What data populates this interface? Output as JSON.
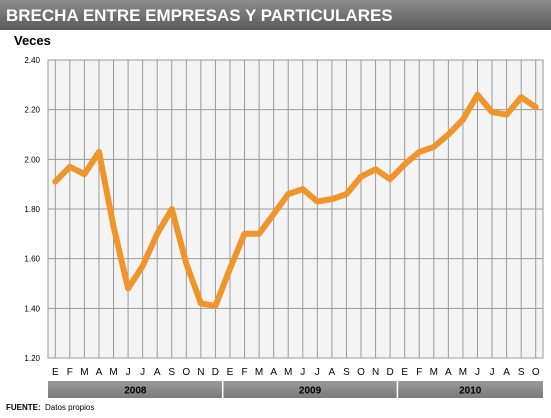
{
  "chart_data": {
    "type": "line",
    "title": "BRECHA ENTRE EMPRESAS Y PARTICULARES",
    "ylabel": "Veces",
    "source_label": "FUENTE:",
    "source_text": "Datos propios",
    "ylim": [
      1.2,
      2.4
    ],
    "yticks": [
      "1.20",
      "1.40",
      "1.60",
      "1.80",
      "2.00",
      "2.20",
      "2.40"
    ],
    "grid": true,
    "categories": [
      "E",
      "F",
      "M",
      "A",
      "M",
      "J",
      "J",
      "A",
      "S",
      "O",
      "N",
      "D",
      "E",
      "F",
      "M",
      "A",
      "M",
      "J",
      "J",
      "A",
      "S",
      "O",
      "N",
      "D",
      "E",
      "F",
      "M",
      "A",
      "M",
      "J",
      "J",
      "A",
      "S",
      "O"
    ],
    "years": [
      {
        "label": "2008",
        "months": 12
      },
      {
        "label": "2009",
        "months": 12
      },
      {
        "label": "2010",
        "months": 10
      }
    ],
    "values": [
      1.91,
      1.97,
      1.94,
      2.03,
      1.73,
      1.48,
      1.57,
      1.7,
      1.8,
      1.58,
      1.42,
      1.41,
      1.56,
      1.7,
      1.7,
      1.78,
      1.86,
      1.88,
      1.83,
      1.84,
      1.86,
      1.93,
      1.96,
      1.92,
      1.98,
      2.03,
      2.05,
      2.1,
      2.16,
      2.26,
      2.19,
      2.18,
      2.25,
      2.21
    ],
    "colors": {
      "line": "#F0952C",
      "title_bg": "#6f6f6f",
      "year_band_bg": "#8a8a8a",
      "plot_bg": "#f4f4f4",
      "grid": "#9a9a9a"
    }
  }
}
